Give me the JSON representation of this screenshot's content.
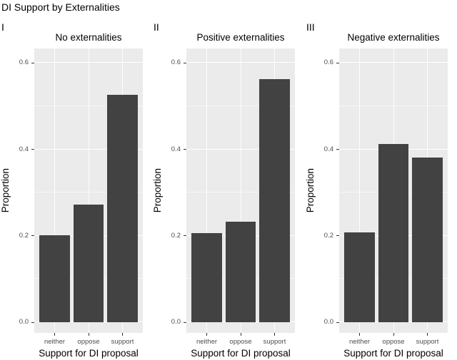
{
  "title": "DI Support by Externalities",
  "chart_data": {
    "type": "bar",
    "categories": [
      "neither",
      "oppose",
      "support"
    ],
    "xlabel": "Support for DI proposal",
    "ylabel": "Proportion",
    "ylim": [
      0,
      0.635
    ],
    "y_major_ticks": [
      0.0,
      0.2,
      0.4,
      0.6
    ],
    "y_tick_labels": [
      "0.0",
      "0.2",
      "0.4",
      "0.6"
    ],
    "y_minor_ticks": [
      0.1,
      0.3,
      0.5
    ],
    "grid": "white major and minor horizontal lines plus vertical category lines on grey panel",
    "legend": "none",
    "panels": [
      {
        "tag": "I",
        "title": "No externalities",
        "values": [
          0.202,
          0.272,
          0.527
        ]
      },
      {
        "tag": "II",
        "title": "Positive externalities",
        "values": [
          0.207,
          0.233,
          0.562
        ]
      },
      {
        "tag": "III",
        "title": "Negative externalities",
        "values": [
          0.208,
          0.413,
          0.382
        ]
      }
    ]
  },
  "colors": {
    "bar_fill": "#424242",
    "panel_background": "#EBEBEB",
    "gridline": "#FFFFFF",
    "tick_text": "#4D4D4D",
    "axis_text": "#000000",
    "tick_mark": "#333333",
    "figure_background": "#FFFFFF"
  }
}
